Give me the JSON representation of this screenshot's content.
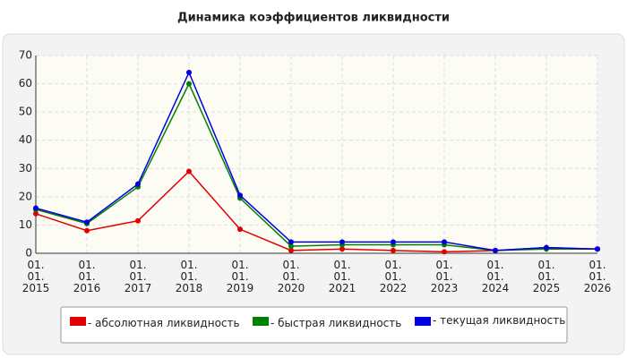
{
  "chart_data": {
    "type": "line",
    "title": "Динамика коэффициентов ликвидности",
    "categories": [
      "01. 01. 2015",
      "01. 01. 2016",
      "01. 01. 2017",
      "01. 01. 2018",
      "01. 01. 2019",
      "01. 01. 2020",
      "01. 01. 2021",
      "01. 01. 2022",
      "01. 01. 2023",
      "01. 01. 2024",
      "01. 01. 2025",
      "01. 01. 2026"
    ],
    "series": [
      {
        "name": "- абсолютная ликвидность",
        "color": "#e00000",
        "values": [
          14,
          8,
          11.5,
          29,
          8.5,
          1,
          1.5,
          1,
          0.5,
          1,
          2,
          1.5
        ]
      },
      {
        "name": "- быстрая ликвидность",
        "color": "#008000",
        "values": [
          15.5,
          10.5,
          23.5,
          60,
          19.5,
          2.5,
          3,
          3,
          3,
          1,
          1.5,
          1.5
        ]
      },
      {
        "name": "- текущая ликвидность",
        "color": "#0000e0",
        "values": [
          16,
          11,
          24.5,
          64,
          20.5,
          4,
          4,
          4,
          4,
          1,
          2,
          1.5
        ]
      }
    ],
    "ylim": [
      0,
      70
    ],
    "yticks": [
      0,
      10,
      20,
      30,
      40,
      50,
      60,
      70
    ],
    "grid": true
  }
}
